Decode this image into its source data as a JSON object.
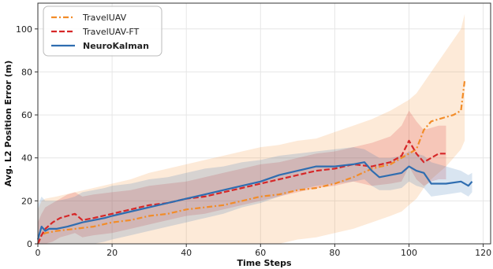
{
  "chart_data": {
    "type": "line",
    "title": "",
    "xlabel": "Time Steps",
    "ylabel": "Avg. L2 Position Error (m)",
    "xlim": [
      0,
      122
    ],
    "ylim": [
      0,
      112
    ],
    "xticks": [
      0,
      20,
      40,
      60,
      80,
      100,
      120
    ],
    "yticks": [
      0,
      20,
      40,
      60,
      80,
      100
    ],
    "grid": true,
    "legend_position": "top-left",
    "series": [
      {
        "name": "TravelUAV",
        "color": "#f28c28",
        "line_style": "dashdot",
        "bold_label": false,
        "x": [
          0,
          1,
          2,
          5,
          10,
          15,
          20,
          25,
          30,
          35,
          40,
          45,
          50,
          55,
          60,
          65,
          70,
          75,
          80,
          85,
          90,
          95,
          98,
          100,
          102,
          104,
          106,
          108,
          110,
          112,
          114,
          115
        ],
        "y": [
          0,
          4,
          5,
          6,
          7,
          8,
          10,
          11,
          13,
          14,
          16,
          17,
          18,
          20,
          22,
          23,
          25,
          26,
          28,
          31,
          35,
          37,
          40,
          42,
          44,
          53,
          57,
          58,
          59,
          60,
          62,
          76
        ],
        "upper": [
          16,
          20,
          21,
          22,
          24,
          26,
          28,
          30,
          33,
          35,
          37,
          39,
          41,
          43,
          45,
          46,
          48,
          49,
          52,
          55,
          58,
          62,
          65,
          67,
          70,
          75,
          80,
          85,
          90,
          95,
          100,
          107
        ],
        "lower": [
          0,
          0,
          0,
          0,
          0,
          0,
          0,
          0,
          0,
          0,
          0,
          0,
          0,
          0,
          0,
          0,
          2,
          3,
          5,
          7,
          10,
          13,
          15,
          18,
          21,
          26,
          30,
          33,
          36,
          40,
          44,
          48
        ]
      },
      {
        "name": "TravelUAV-FT",
        "color": "#d62728",
        "line_style": "dashed",
        "bold_label": false,
        "x": [
          0,
          1,
          2,
          4,
          6,
          8,
          10,
          12,
          15,
          20,
          25,
          30,
          35,
          40,
          45,
          50,
          55,
          60,
          65,
          70,
          75,
          80,
          85,
          90,
          95,
          98,
          100,
          102,
          104,
          106,
          108,
          110
        ],
        "y": [
          0,
          4,
          7,
          10,
          12,
          13,
          14,
          11,
          12,
          14,
          16,
          18,
          19,
          21,
          22,
          24,
          26,
          28,
          30,
          32,
          34,
          35,
          37,
          36,
          38,
          41,
          48,
          42,
          38,
          40,
          42,
          42
        ],
        "upper": [
          10,
          14,
          17,
          19,
          21,
          23,
          24,
          22,
          23,
          24,
          25,
          27,
          28,
          29,
          31,
          33,
          35,
          37,
          38,
          40,
          42,
          43,
          45,
          47,
          50,
          55,
          62,
          57,
          53,
          54,
          55,
          55
        ],
        "lower": [
          0,
          0,
          0,
          1,
          3,
          4,
          5,
          3,
          4,
          5,
          7,
          9,
          11,
          13,
          14,
          16,
          18,
          20,
          22,
          24,
          26,
          27,
          29,
          27,
          28,
          29,
          36,
          30,
          27,
          29,
          30,
          30
        ]
      },
      {
        "name": "NeuroKalman",
        "color": "#2f6db0",
        "line_style": "solid",
        "bold_label": true,
        "x": [
          0,
          1,
          2,
          3,
          5,
          8,
          10,
          12,
          15,
          18,
          20,
          25,
          30,
          35,
          40,
          45,
          50,
          55,
          60,
          65,
          70,
          75,
          80,
          85,
          88,
          90,
          92,
          95,
          98,
          100,
          102,
          104,
          106,
          110,
          114,
          116,
          117
        ],
        "y": [
          2,
          8,
          6,
          7,
          7,
          8,
          9,
          10,
          11,
          12,
          13,
          15,
          17,
          19,
          21,
          23,
          25,
          27,
          29,
          32,
          34,
          36,
          36,
          37,
          38,
          34,
          31,
          32,
          33,
          36,
          34,
          33,
          28,
          28,
          29,
          27,
          29
        ],
        "upper": [
          18,
          22,
          20,
          20,
          20,
          21,
          22,
          24,
          25,
          26,
          27,
          28,
          30,
          31,
          33,
          35,
          36,
          38,
          39,
          41,
          42,
          43,
          44,
          45,
          44,
          42,
          40,
          40,
          41,
          43,
          42,
          41,
          38,
          36,
          34,
          32,
          33
        ],
        "lower": [
          0,
          0,
          0,
          0,
          0,
          0,
          0,
          0,
          0,
          1,
          2,
          4,
          6,
          8,
          10,
          12,
          14,
          17,
          19,
          22,
          25,
          27,
          28,
          29,
          30,
          27,
          25,
          25,
          26,
          29,
          27,
          26,
          22,
          23,
          24,
          22,
          24
        ]
      }
    ]
  }
}
